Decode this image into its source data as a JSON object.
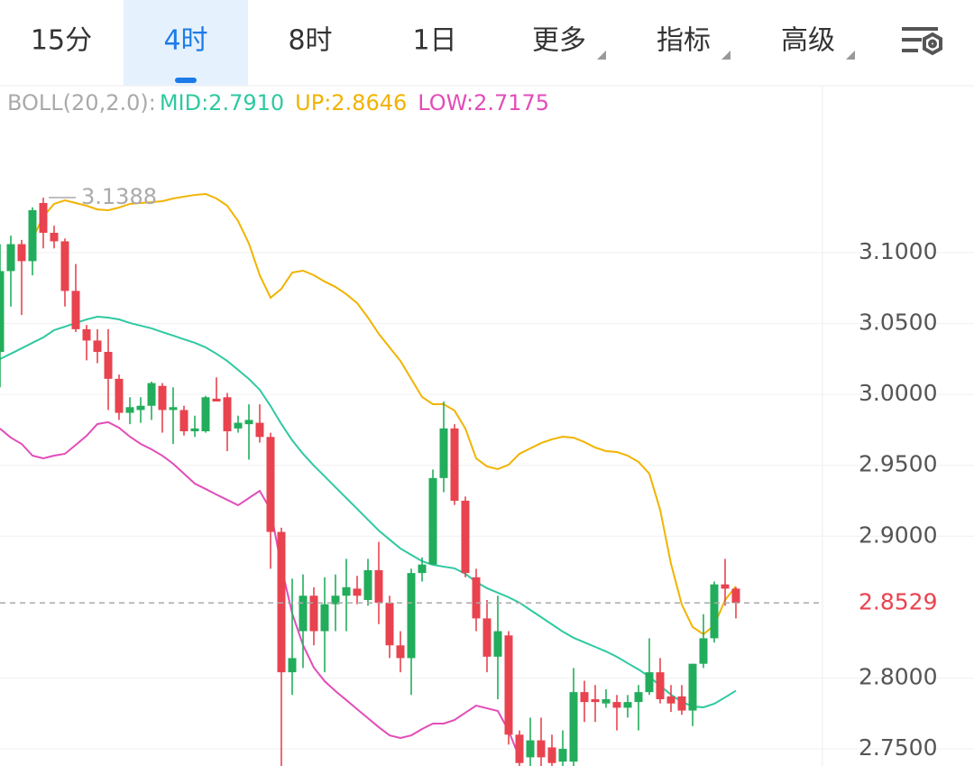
{
  "tabs": [
    {
      "label": "15分"
    },
    {
      "label": "4时"
    },
    {
      "label": "8时"
    },
    {
      "label": "1日"
    },
    {
      "label": "更多",
      "dropdown": true
    },
    {
      "label": "指标",
      "dropdown": true
    },
    {
      "label": "高级",
      "dropdown": true
    }
  ],
  "selected_tab": 1,
  "chart_data": {
    "type": "candlestick",
    "indicator_label": "BOLL(20,2.0):",
    "open": [
      3.03,
      3.087,
      3.106,
      3.094,
      3.135,
      3.114,
      3.108,
      3.073,
      3.046,
      3.038,
      3.03,
      3.011,
      2.987,
      2.989,
      2.992,
      3.006,
      2.989,
      2.989,
      2.974,
      2.974,
      2.997,
      2.998,
      2.976,
      2.979,
      2.98,
      2.97,
      2.903,
      2.804,
      2.833,
      2.858,
      2.833,
      2.852,
      2.858,
      2.863,
      2.855,
      2.876,
      2.853,
      2.823,
      2.814,
      2.874,
      2.88,
      2.941,
      2.976,
      2.925,
      2.871,
      2.842,
      2.815,
      2.83,
      2.76,
      2.744,
      2.756,
      2.751,
      2.741,
      2.741,
      2.79,
      2.785,
      2.782,
      2.783,
      2.779,
      2.783,
      2.79,
      2.804,
      2.787,
      2.787,
      2.777,
      2.81,
      2.828,
      2.866,
      2.863
    ],
    "high": [
      3.106,
      3.112,
      3.109,
      3.132,
      3.1388,
      3.119,
      3.11,
      3.092,
      3.049,
      3.046,
      3.046,
      3.014,
      2.998,
      2.998,
      3.009,
      3.008,
      3.005,
      2.992,
      2.985,
      2.999,
      3.012,
      3.001,
      2.985,
      2.993,
      2.993,
      2.973,
      2.906,
      2.87,
      2.873,
      2.864,
      2.871,
      2.873,
      2.884,
      2.872,
      2.884,
      2.896,
      2.858,
      2.833,
      2.877,
      2.885,
      2.947,
      2.995,
      2.979,
      2.928,
      2.877,
      2.855,
      2.858,
      2.833,
      2.763,
      2.772,
      2.772,
      2.76,
      2.763,
      2.807,
      2.798,
      2.795,
      2.792,
      2.788,
      2.788,
      2.795,
      2.828,
      2.814,
      2.795,
      2.795,
      2.81,
      2.845,
      2.868,
      2.884,
      2.864
    ],
    "low": [
      3.005,
      3.062,
      3.056,
      3.084,
      3.103,
      3.103,
      3.062,
      3.044,
      3.024,
      3.022,
      2.989,
      2.982,
      2.979,
      2.98,
      2.982,
      2.973,
      2.965,
      2.971,
      2.97,
      2.973,
      2.995,
      2.96,
      2.973,
      2.954,
      2.966,
      2.877,
      2.737,
      2.788,
      2.807,
      2.823,
      2.804,
      2.833,
      2.833,
      2.852,
      2.851,
      2.838,
      2.814,
      2.804,
      2.788,
      2.868,
      2.88,
      2.931,
      2.922,
      2.871,
      2.833,
      2.804,
      2.785,
      2.753,
      2.737,
      2.737,
      2.737,
      2.737,
      2.737,
      2.737,
      2.769,
      2.769,
      2.779,
      2.763,
      2.772,
      2.763,
      2.788,
      2.782,
      2.776,
      2.774,
      2.766,
      2.807,
      2.825,
      2.851,
      2.842
    ],
    "close": [
      3.087,
      3.106,
      3.094,
      3.13,
      3.114,
      3.108,
      3.073,
      3.046,
      3.038,
      3.03,
      3.011,
      2.987,
      2.991,
      2.992,
      3.008,
      2.989,
      2.991,
      2.974,
      2.976,
      2.998,
      2.995,
      2.974,
      2.98,
      2.982,
      2.97,
      2.903,
      2.804,
      2.814,
      2.858,
      2.833,
      2.852,
      2.858,
      2.864,
      2.858,
      2.876,
      2.853,
      2.823,
      2.814,
      2.874,
      2.88,
      2.941,
      2.976,
      2.925,
      2.874,
      2.842,
      2.815,
      2.833,
      2.76,
      2.74,
      2.756,
      2.744,
      2.74,
      2.75,
      2.79,
      2.783,
      2.783,
      2.785,
      2.779,
      2.783,
      2.79,
      2.804,
      2.785,
      2.782,
      2.777,
      2.81,
      2.828,
      2.866,
      2.863,
      2.8529
    ],
    "up_color": "#22ad5c",
    "down_color": "#e8434f",
    "series": [
      {
        "name": "MID:2.7910",
        "color": "#2ec9a0",
        "values": [
          3.0249,
          3.0287,
          3.0325,
          3.0364,
          3.0402,
          3.0453,
          3.0478,
          3.0504,
          3.0529,
          3.0548,
          3.0542,
          3.0529,
          3.0504,
          3.0485,
          3.0466,
          3.044,
          3.0415,
          3.0389,
          3.0364,
          3.0332,
          3.0287,
          3.0236,
          3.0173,
          3.0109,
          3.0033,
          2.9918,
          2.9791,
          2.9676,
          2.9581,
          2.9498,
          2.9422,
          2.9345,
          2.9269,
          2.9193,
          2.9116,
          2.904,
          2.8976,
          2.8913,
          2.8868,
          2.8824,
          2.8798,
          2.8785,
          2.8773,
          2.8735,
          2.8677,
          2.8633,
          2.8601,
          2.8569,
          2.8531,
          2.848,
          2.8429,
          2.8378,
          2.8327,
          2.8283,
          2.8251,
          2.8219,
          2.8187,
          2.8149,
          2.8104,
          2.806,
          2.8009,
          2.7945,
          2.7882,
          2.7831,
          2.7799,
          2.7793,
          2.7818,
          2.7863,
          2.791
        ]
      },
      {
        "name": "UP:2.8646",
        "color": "#f2b300",
        "values": [
          null,
          null,
          null,
          3.1095,
          3.1255,
          3.1344,
          3.1369,
          3.135,
          3.1331,
          3.1305,
          3.1299,
          3.1318,
          3.1344,
          3.135,
          3.1356,
          3.1363,
          3.1382,
          3.1395,
          3.1407,
          3.1414,
          3.1382,
          3.1331,
          3.1223,
          3.1064,
          3.0841,
          3.0682,
          3.0745,
          3.086,
          3.0873,
          3.0841,
          3.0796,
          3.0758,
          3.0707,
          3.0644,
          3.0542,
          3.0427,
          3.0332,
          3.0236,
          3.0109,
          2.9982,
          2.9931,
          2.9931,
          2.9886,
          2.9759,
          2.9549,
          2.9492,
          2.9473,
          2.9504,
          2.9581,
          2.9619,
          2.9657,
          2.9683,
          2.9702,
          2.9695,
          2.9664,
          2.9625,
          2.96,
          2.9594,
          2.9568,
          2.9524,
          2.9441,
          2.9186,
          2.8805,
          2.8518,
          2.8359,
          2.8308,
          2.8372,
          2.855,
          2.8646
        ]
      },
      {
        "name": "LOW:2.7175",
        "color": "#e24db8",
        "values": [
          2.9759,
          2.9695,
          2.9651,
          2.9568,
          2.9549,
          2.9568,
          2.9581,
          2.9644,
          2.9708,
          2.9791,
          2.9804,
          2.9765,
          2.9702,
          2.9651,
          2.9613,
          2.9568,
          2.9511,
          2.9441,
          2.9371,
          2.9333,
          2.9294,
          2.9256,
          2.9218,
          2.9269,
          2.932,
          2.9186,
          2.8785,
          2.8455,
          2.8232,
          2.8073,
          2.7977,
          2.7907,
          2.7844,
          2.778,
          2.7716,
          2.7653,
          2.7595,
          2.7576,
          2.7595,
          2.764,
          2.7678,
          2.7678,
          2.7704,
          2.7755,
          2.7805,
          2.7786,
          2.7767,
          2.7627,
          2.7436,
          null,
          null,
          null,
          null,
          null,
          null,
          null,
          null,
          null,
          null,
          null,
          null,
          null,
          null,
          null,
          null,
          null,
          null,
          null,
          null
        ]
      }
    ],
    "ylim": [
      2.737,
      3.19
    ],
    "yticks": [
      {
        "value": 3.1,
        "label": "3.1000"
      },
      {
        "value": 3.05,
        "label": "3.0500"
      },
      {
        "value": 3.0,
        "label": "3.0000"
      },
      {
        "value": 2.95,
        "label": "2.9500"
      },
      {
        "value": 2.9,
        "label": "2.9000"
      },
      {
        "value": 2.8,
        "label": "2.8000"
      },
      {
        "value": 2.75,
        "label": "2.7500"
      }
    ],
    "grid": true,
    "current_price": {
      "value": 2.8529,
      "label": "2.8529"
    },
    "max_marker": {
      "value": 3.1388,
      "label": "3.1388"
    }
  }
}
